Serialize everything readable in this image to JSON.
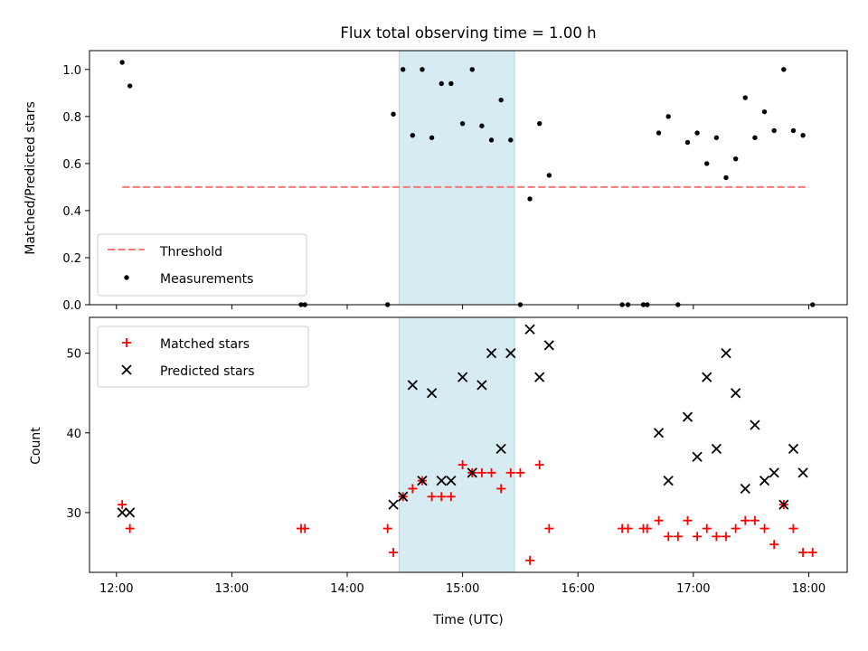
{
  "title": "Flux total observing time = 1.00 h",
  "colors": {
    "threshold": "#f87878",
    "measurements": "#000000",
    "matched": "#ff0000",
    "predicted": "#000000",
    "span_fill": "#add8e6"
  },
  "chart_data": [
    {
      "type": "scatter",
      "panel": "top",
      "ylabel": "Matched/Predicted stars",
      "xlabel": "",
      "xlim": [
        "11:46",
        "18:20"
      ],
      "ylim": [
        0,
        1.08
      ],
      "yticks": [
        0.0,
        0.2,
        0.4,
        0.6,
        0.8,
        1.0
      ],
      "ytick_labels": [
        "0.0",
        "0.2",
        "0.4",
        "0.6",
        "0.8",
        "1.0"
      ],
      "highlight_span": [
        "14:27",
        "15:27"
      ],
      "legend": {
        "placement": "lower-left",
        "entries": [
          "Threshold",
          "Measurements"
        ]
      },
      "threshold": {
        "name": "Threshold",
        "x": [
          "12:03",
          "18:00"
        ],
        "y": 0.5
      },
      "series": [
        {
          "name": "Measurements",
          "points": [
            [
              "12:03",
              1.03
            ],
            [
              "12:07",
              0.93
            ],
            [
              "13:36",
              0.0
            ],
            [
              "13:38",
              0.0
            ],
            [
              "14:21",
              0.0
            ],
            [
              "14:24",
              0.81
            ],
            [
              "14:29",
              1.0
            ],
            [
              "14:34",
              0.72
            ],
            [
              "14:39",
              1.0
            ],
            [
              "14:44",
              0.71
            ],
            [
              "14:49",
              0.94
            ],
            [
              "14:54",
              0.94
            ],
            [
              "15:00",
              0.77
            ],
            [
              "15:05",
              1.0
            ],
            [
              "15:10",
              0.76
            ],
            [
              "15:15",
              0.7
            ],
            [
              "15:20",
              0.87
            ],
            [
              "15:25",
              0.7
            ],
            [
              "15:30",
              0.0
            ],
            [
              "15:35",
              0.45
            ],
            [
              "15:40",
              0.77
            ],
            [
              "15:45",
              0.55
            ],
            [
              "16:23",
              0.0
            ],
            [
              "16:26",
              0.0
            ],
            [
              "16:34",
              0.0
            ],
            [
              "16:36",
              0.0
            ],
            [
              "16:42",
              0.73
            ],
            [
              "16:47",
              0.8
            ],
            [
              "16:52",
              0.0
            ],
            [
              "16:57",
              0.69
            ],
            [
              "17:02",
              0.73
            ],
            [
              "17:07",
              0.6
            ],
            [
              "17:12",
              0.71
            ],
            [
              "17:17",
              0.54
            ],
            [
              "17:22",
              0.62
            ],
            [
              "17:27",
              0.88
            ],
            [
              "17:32",
              0.71
            ],
            [
              "17:37",
              0.82
            ],
            [
              "17:42",
              0.74
            ],
            [
              "17:47",
              1.0
            ],
            [
              "17:52",
              0.74
            ],
            [
              "17:57",
              0.72
            ],
            [
              "18:02",
              0.0
            ]
          ]
        }
      ]
    },
    {
      "type": "scatter",
      "panel": "bottom",
      "xlabel": "Time (UTC)",
      "ylabel": "Count",
      "xlim": [
        "11:46",
        "18:20"
      ],
      "ylim": [
        22.5,
        54.5
      ],
      "xticks": [
        "12:00",
        "13:00",
        "14:00",
        "15:00",
        "16:00",
        "17:00",
        "18:00"
      ],
      "yticks": [
        30,
        40,
        50
      ],
      "highlight_span": [
        "14:27",
        "15:27"
      ],
      "legend": {
        "placement": "upper-left",
        "entries": [
          "Matched stars",
          "Predicted stars"
        ]
      },
      "series": [
        {
          "name": "Matched stars",
          "marker": "+",
          "points": [
            [
              "12:03",
              31
            ],
            [
              "12:07",
              28
            ],
            [
              "13:36",
              28
            ],
            [
              "13:38",
              28
            ],
            [
              "14:21",
              28
            ],
            [
              "14:24",
              25
            ],
            [
              "14:29",
              32
            ],
            [
              "14:34",
              33
            ],
            [
              "14:39",
              34
            ],
            [
              "14:44",
              32
            ],
            [
              "14:49",
              32
            ],
            [
              "14:54",
              32
            ],
            [
              "15:00",
              36
            ],
            [
              "15:05",
              35
            ],
            [
              "15:10",
              35
            ],
            [
              "15:15",
              35
            ],
            [
              "15:20",
              33
            ],
            [
              "15:25",
              35
            ],
            [
              "15:30",
              35
            ],
            [
              "15:35",
              24
            ],
            [
              "15:40",
              36
            ],
            [
              "15:45",
              28
            ],
            [
              "16:23",
              28
            ],
            [
              "16:26",
              28
            ],
            [
              "16:34",
              28
            ],
            [
              "16:36",
              28
            ],
            [
              "16:42",
              29
            ],
            [
              "16:47",
              27
            ],
            [
              "16:52",
              27
            ],
            [
              "16:57",
              29
            ],
            [
              "17:02",
              27
            ],
            [
              "17:07",
              28
            ],
            [
              "17:12",
              27
            ],
            [
              "17:17",
              27
            ],
            [
              "17:22",
              28
            ],
            [
              "17:27",
              29
            ],
            [
              "17:32",
              29
            ],
            [
              "17:37",
              28
            ],
            [
              "17:42",
              26
            ],
            [
              "17:47",
              31
            ],
            [
              "17:52",
              28
            ],
            [
              "17:57",
              25
            ],
            [
              "18:02",
              25
            ]
          ]
        },
        {
          "name": "Predicted stars",
          "marker": "x",
          "points": [
            [
              "12:03",
              30
            ],
            [
              "12:07",
              30
            ],
            [
              "14:24",
              31
            ],
            [
              "14:29",
              32
            ],
            [
              "14:34",
              46
            ],
            [
              "14:39",
              34
            ],
            [
              "14:44",
              45
            ],
            [
              "14:49",
              34
            ],
            [
              "14:54",
              34
            ],
            [
              "15:00",
              47
            ],
            [
              "15:05",
              35
            ],
            [
              "15:10",
              46
            ],
            [
              "15:15",
              50
            ],
            [
              "15:20",
              38
            ],
            [
              "15:25",
              50
            ],
            [
              "15:35",
              53
            ],
            [
              "15:40",
              47
            ],
            [
              "15:45",
              51
            ],
            [
              "16:42",
              40
            ],
            [
              "16:47",
              34
            ],
            [
              "16:57",
              42
            ],
            [
              "17:02",
              37
            ],
            [
              "17:07",
              47
            ],
            [
              "17:12",
              38
            ],
            [
              "17:17",
              50
            ],
            [
              "17:22",
              45
            ],
            [
              "17:27",
              33
            ],
            [
              "17:32",
              41
            ],
            [
              "17:37",
              34
            ],
            [
              "17:42",
              35
            ],
            [
              "17:47",
              31
            ],
            [
              "17:52",
              38
            ],
            [
              "17:57",
              35
            ]
          ]
        }
      ]
    }
  ]
}
